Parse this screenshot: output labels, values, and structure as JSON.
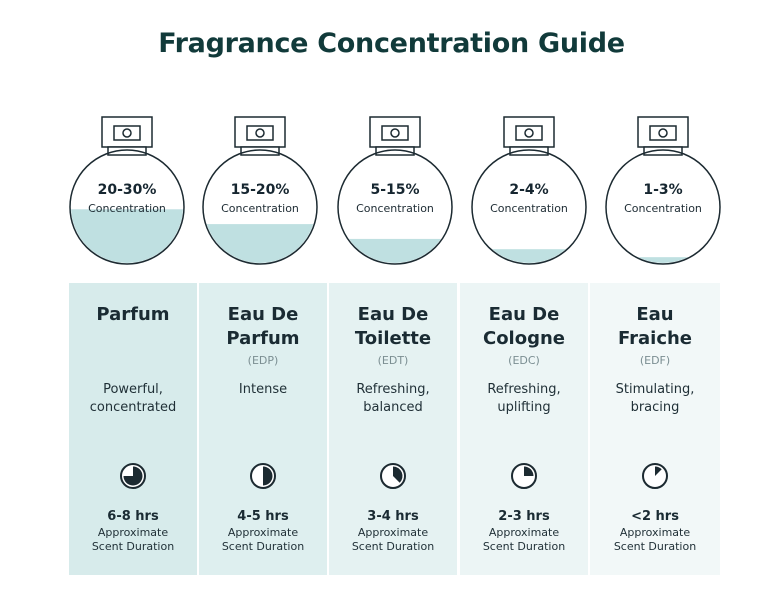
{
  "title": "Fragrance Concentration Guide",
  "colors": {
    "title": "#113a3a",
    "liquid": "#bfe0e1",
    "outline": "#1c2a31",
    "column_bg": [
      "#d7ebeb",
      "#deefef",
      "#e5f2f2",
      "#ecf5f5",
      "#f2f8f8"
    ]
  },
  "bottles": [
    {
      "percent": "20-30%",
      "label": "Concentration",
      "fill_level": 0.48
    },
    {
      "percent": "15-20%",
      "label": "Concentration",
      "fill_level": 0.35
    },
    {
      "percent": "5-15%",
      "label": "Concentration",
      "fill_level": 0.22
    },
    {
      "percent": "2-4%",
      "label": "Concentration",
      "fill_level": 0.13
    },
    {
      "percent": "1-3%",
      "label": "Concentration",
      "fill_level": 0.06
    }
  ],
  "types": [
    {
      "name_line1": "Parfum",
      "name_line2": "",
      "abbr": "",
      "desc_line1": "Powerful,",
      "desc_line2": "concentrated",
      "clock_icon": "clock-pie-icon",
      "clock_fraction": 0.75,
      "hours": "6-8 hrs",
      "dur_line1": "Approximate",
      "dur_line2": "Scent Duration"
    },
    {
      "name_line1": "Eau De",
      "name_line2": "Parfum",
      "abbr": "(EDP)",
      "desc_line1": "Intense",
      "desc_line2": "",
      "clock_icon": "clock-pie-icon",
      "clock_fraction": 0.5,
      "hours": "4-5 hrs",
      "dur_line1": "Approximate",
      "dur_line2": "Scent Duration"
    },
    {
      "name_line1": "Eau De",
      "name_line2": "Toilette",
      "abbr": "(EDT)",
      "desc_line1": "Refreshing,",
      "desc_line2": "balanced",
      "clock_icon": "clock-pie-icon",
      "clock_fraction": 0.375,
      "hours": "3-4 hrs",
      "dur_line1": "Approximate",
      "dur_line2": "Scent Duration"
    },
    {
      "name_line1": "Eau De",
      "name_line2": "Cologne",
      "abbr": "(EDC)",
      "desc_line1": "Refreshing,",
      "desc_line2": "uplifting",
      "clock_icon": "clock-pie-icon",
      "clock_fraction": 0.25,
      "hours": "2-3 hrs",
      "dur_line1": "Approximate",
      "dur_line2": "Scent Duration"
    },
    {
      "name_line1": "Eau",
      "name_line2": "Fraiche",
      "abbr": "(EDF)",
      "desc_line1": "Stimulating,",
      "desc_line2": "bracing",
      "clock_icon": "clock-pie-icon",
      "clock_fraction": 0.125,
      "hours": "<2 hrs",
      "dur_line1": "Approximate",
      "dur_line2": "Scent Duration"
    }
  ]
}
